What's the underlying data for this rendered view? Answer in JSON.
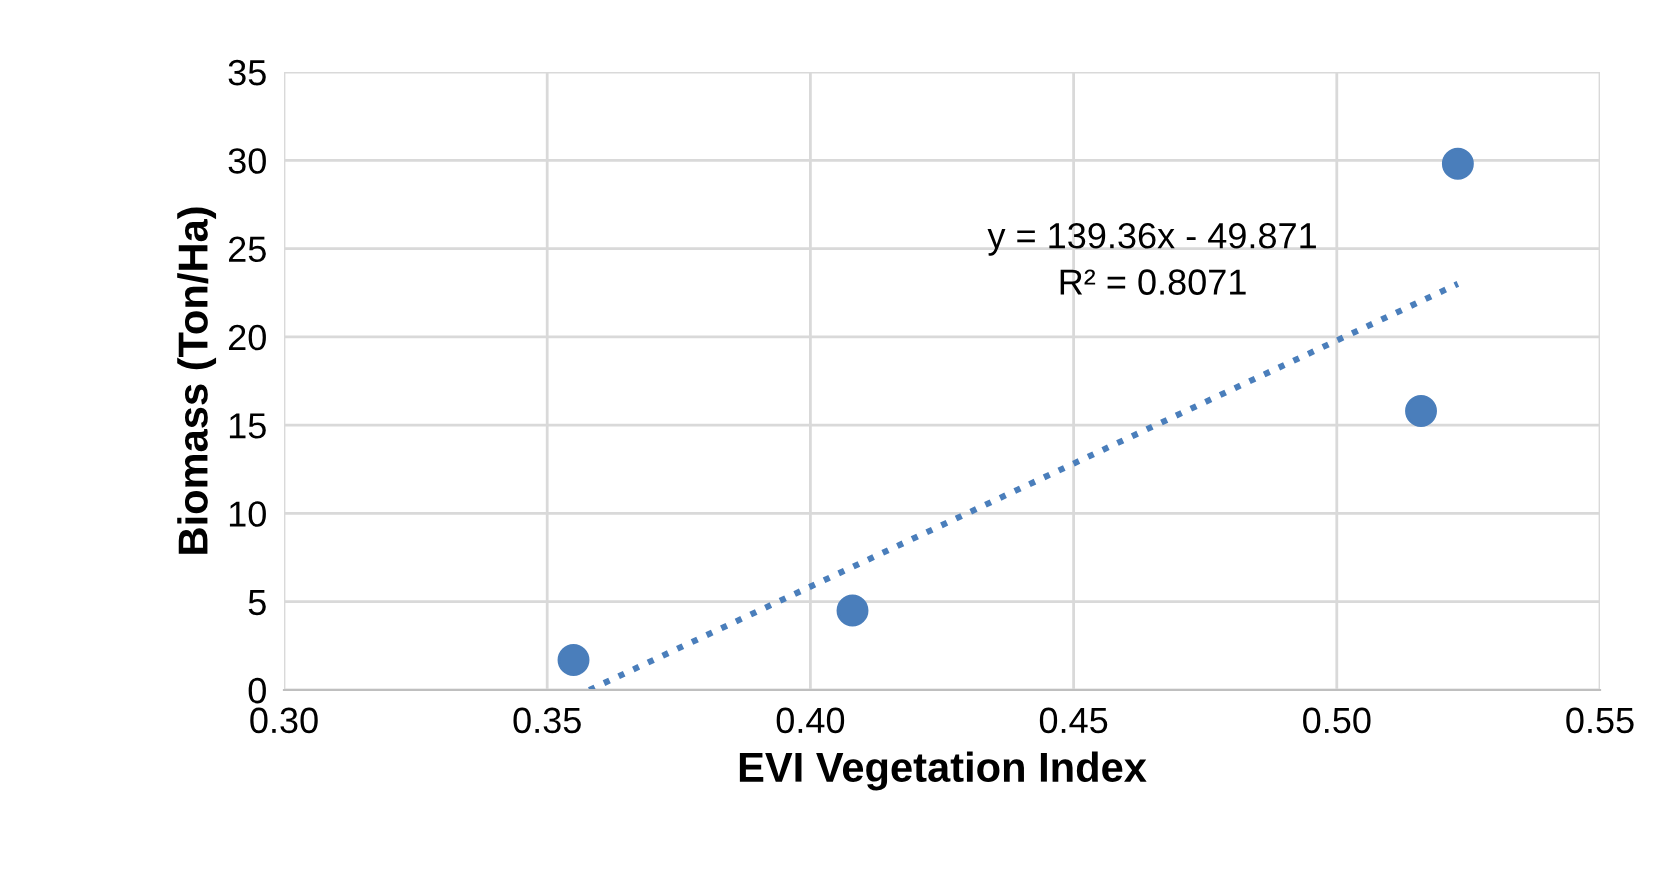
{
  "chart_data": {
    "type": "scatter",
    "xlabel": "EVI Vegetation Index",
    "ylabel": "Biomass (Ton/Ha)",
    "series": [
      {
        "type": "scatter",
        "color": "#4a7ebb",
        "x": [
          0.355,
          0.408,
          0.516,
          0.523
        ],
        "values": [
          1.7,
          4.5,
          15.8,
          29.8
        ],
        "marker": "circle"
      },
      {
        "type": "line",
        "color": "#4a7ebb",
        "x": [
          0.358,
          0.523
        ],
        "values": [
          0.0,
          23.0
        ],
        "line_style": "dotted",
        "marker": "none"
      }
    ],
    "annotations": [
      "y = 139.36x - 49.871",
      "R² = 0.8071"
    ],
    "xlim": [
      0.3,
      0.55
    ],
    "ylim": [
      0,
      35
    ],
    "xticks": [
      {
        "value": 0.3,
        "label": "0.30"
      },
      {
        "value": 0.35,
        "label": "0.35"
      },
      {
        "value": 0.4,
        "label": "0.40"
      },
      {
        "value": 0.45,
        "label": "0.45"
      },
      {
        "value": 0.5,
        "label": "0.50"
      },
      {
        "value": 0.55,
        "label": "0.55"
      }
    ],
    "yticks": [
      0,
      5,
      10,
      15,
      20,
      25,
      30,
      35
    ],
    "grid": true,
    "legend": false
  }
}
